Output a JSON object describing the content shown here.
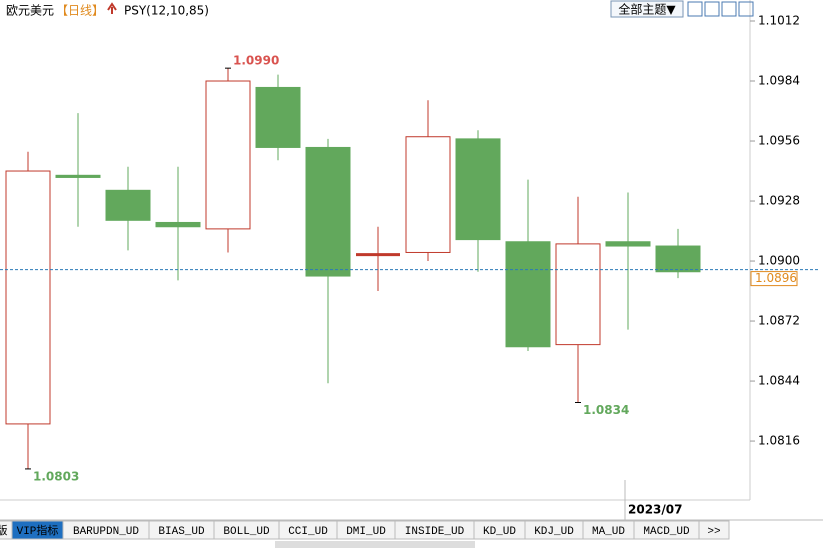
{
  "header": {
    "symbol": "欧元美元",
    "period": "【日线】",
    "indicator": "PSY(12,10,85)",
    "theme_button": "全部主题▼"
  },
  "chart_data": {
    "type": "candlestick",
    "categories": [
      null,
      null,
      null,
      null,
      null,
      null,
      null,
      null,
      null,
      null,
      null,
      null,
      "2023/07",
      null
    ],
    "open": [
      1.0824,
      1.094,
      1.0933,
      1.0918,
      1.0915,
      1.0981,
      1.0953,
      1.0903,
      1.0904,
      1.0957,
      1.0909,
      1.0861,
      1.0909,
      1.0907
    ],
    "high": [
      1.0951,
      1.0969,
      1.0944,
      1.0944,
      1.099,
      1.0987,
      1.0957,
      1.0916,
      1.0975,
      1.0961,
      1.0938,
      1.093,
      1.0932,
      1.0915
    ],
    "low": [
      1.0803,
      1.0916,
      1.0905,
      1.0891,
      1.0904,
      1.0947,
      1.0843,
      1.0886,
      1.09,
      1.0895,
      1.0858,
      1.0834,
      1.0868,
      1.0892
    ],
    "close": [
      1.0942,
      1.0939,
      1.0919,
      1.0916,
      1.0984,
      1.0953,
      1.0893,
      1.0903,
      1.0958,
      1.091,
      1.086,
      1.0908,
      1.0907,
      1.0895
    ],
    "up_color": "#c0392b",
    "down_color": "#62a85c",
    "ylim": [
      1.07885,
      1.10218
    ],
    "yticks": [
      1.1012,
      1.0984,
      1.0956,
      1.0928,
      {
        "value": 1.09,
        "label": "1.0900"
      },
      1.0872,
      1.0844,
      1.0816
    ],
    "annotations": [
      {
        "index": 4,
        "value": 1.099,
        "label": "1.0990",
        "color": "#d9534f"
      },
      {
        "index": 0,
        "value": 1.0803,
        "label": "1.0803",
        "color": "#62a85c"
      },
      {
        "index": 11,
        "value": 1.0834,
        "label": "1.0834",
        "color": "#62a85c"
      }
    ],
    "last_price": {
      "value": 1.0896,
      "label": "1.0896"
    }
  },
  "tabs": [
    "版",
    "VIP指标",
    "BARUPDN_UD",
    "BIAS_UD",
    "BOLL_UD",
    "CCI_UD",
    "DMI_UD",
    "INSIDE_UD",
    "KD_UD",
    "KDJ_UD",
    "MA_UD",
    "MACD_UD",
    ">>"
  ]
}
